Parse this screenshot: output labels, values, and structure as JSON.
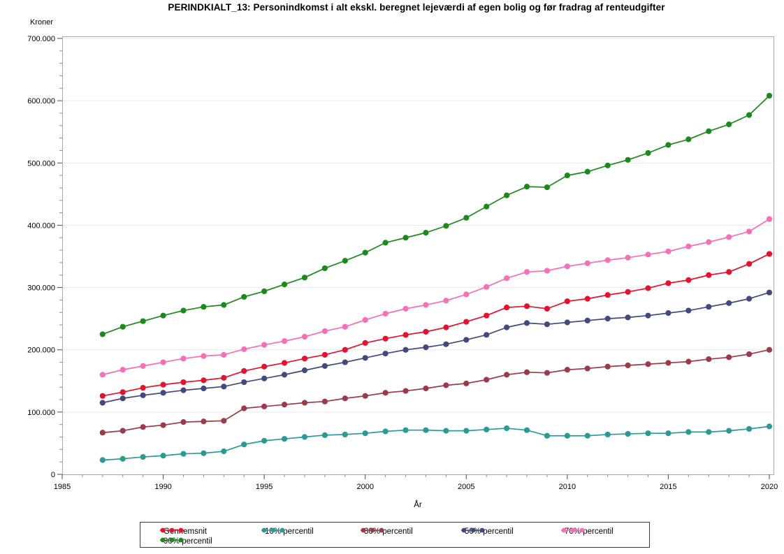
{
  "title": "PERINDKIALT_13: Personindkomst i alt ekskl. beregnet lejeværdi af egen bolig og før fradrag af renteudgifter",
  "chart_data": {
    "type": "line",
    "title": "PERINDKIALT_13: Personindkomst i alt ekskl. beregnet lejeværdi af egen bolig og før fradrag af renteudgifter",
    "xlabel": "År",
    "ylabel": "Kroner",
    "xlim": [
      1985,
      2020
    ],
    "ylim": [
      0,
      700000
    ],
    "x_major_ticks": [
      1985,
      1990,
      1995,
      2000,
      2005,
      2010,
      2015,
      2020
    ],
    "x_tick_labels": [
      "1985",
      "1990",
      "1995",
      "2000",
      "2005",
      "2010",
      "2015",
      "2020"
    ],
    "x_minor_step": 1,
    "y_major_ticks": [
      0,
      100000,
      200000,
      300000,
      400000,
      500000,
      600000,
      700000
    ],
    "y_tick_labels": [
      "0",
      "100.000",
      "200.000",
      "300.000",
      "400.000",
      "500.000",
      "600.000",
      "700.000"
    ],
    "y_minor_step": 20000,
    "grid": "horizontal-major",
    "legend_position": "bottom",
    "marker": "filled-circle",
    "x": [
      1987,
      1988,
      1989,
      1990,
      1991,
      1992,
      1993,
      1994,
      1995,
      1996,
      1997,
      1998,
      1999,
      2000,
      2001,
      2002,
      2003,
      2004,
      2005,
      2006,
      2007,
      2008,
      2009,
      2010,
      2011,
      2012,
      2013,
      2014,
      2015,
      2016,
      2017,
      2018,
      2019,
      2020
    ],
    "series": [
      {
        "name": "Gennemsnit",
        "color": "#e8112d",
        "values": [
          126000,
          132000,
          139000,
          144000,
          148000,
          151000,
          155000,
          166000,
          173000,
          179000,
          186000,
          192000,
          200000,
          211000,
          218000,
          224000,
          229000,
          236000,
          245000,
          255000,
          268000,
          270000,
          266000,
          278000,
          282000,
          288000,
          293000,
          299000,
          307000,
          312000,
          320000,
          325000,
          338000,
          354000
        ]
      },
      {
        "name": "10% percentil",
        "color": "#2a9b94",
        "values": [
          23000,
          25000,
          28000,
          30000,
          33000,
          34000,
          37000,
          48000,
          54000,
          57000,
          60000,
          63000,
          64000,
          66000,
          69000,
          71000,
          71000,
          70000,
          70000,
          72000,
          74000,
          71000,
          62000,
          62000,
          62000,
          64000,
          65000,
          66000,
          66000,
          68000,
          68000,
          70000,
          73000,
          77000
        ]
      },
      {
        "name": "30% percentil",
        "color": "#9c3a4a",
        "values": [
          67000,
          70000,
          76000,
          79000,
          84000,
          85000,
          86000,
          106000,
          109000,
          112000,
          115000,
          117000,
          122000,
          126000,
          131000,
          134000,
          138000,
          143000,
          146000,
          152000,
          160000,
          164000,
          163000,
          168000,
          170000,
          173000,
          175000,
          177000,
          179000,
          181000,
          185000,
          188000,
          193000,
          200000
        ]
      },
      {
        "name": "50% percentil",
        "color": "#42497e",
        "values": [
          115000,
          122000,
          127000,
          131000,
          135000,
          138000,
          141000,
          148000,
          154000,
          160000,
          167000,
          174000,
          180000,
          187000,
          194000,
          200000,
          204000,
          209000,
          216000,
          224000,
          236000,
          243000,
          241000,
          244000,
          247000,
          250000,
          252000,
          255000,
          259000,
          263000,
          269000,
          275000,
          282000,
          292000
        ]
      },
      {
        "name": "70% percentil",
        "color": "#f76fb5",
        "values": [
          160000,
          168000,
          174000,
          180000,
          186000,
          190000,
          192000,
          201000,
          208000,
          214000,
          221000,
          230000,
          237000,
          248000,
          258000,
          266000,
          272000,
          279000,
          289000,
          301000,
          315000,
          325000,
          327000,
          334000,
          339000,
          344000,
          348000,
          353000,
          358000,
          366000,
          373000,
          381000,
          390000,
          410000
        ]
      },
      {
        "name": "90% percentil",
        "color": "#1b8a1b",
        "values": [
          225000,
          237000,
          246000,
          255000,
          263000,
          269000,
          272000,
          285000,
          294000,
          305000,
          316000,
          331000,
          343000,
          356000,
          372000,
          380000,
          388000,
          399000,
          412000,
          430000,
          448000,
          462000,
          461000,
          480000,
          486000,
          496000,
          505000,
          516000,
          529000,
          538000,
          551000,
          562000,
          577000,
          608000
        ]
      }
    ]
  }
}
